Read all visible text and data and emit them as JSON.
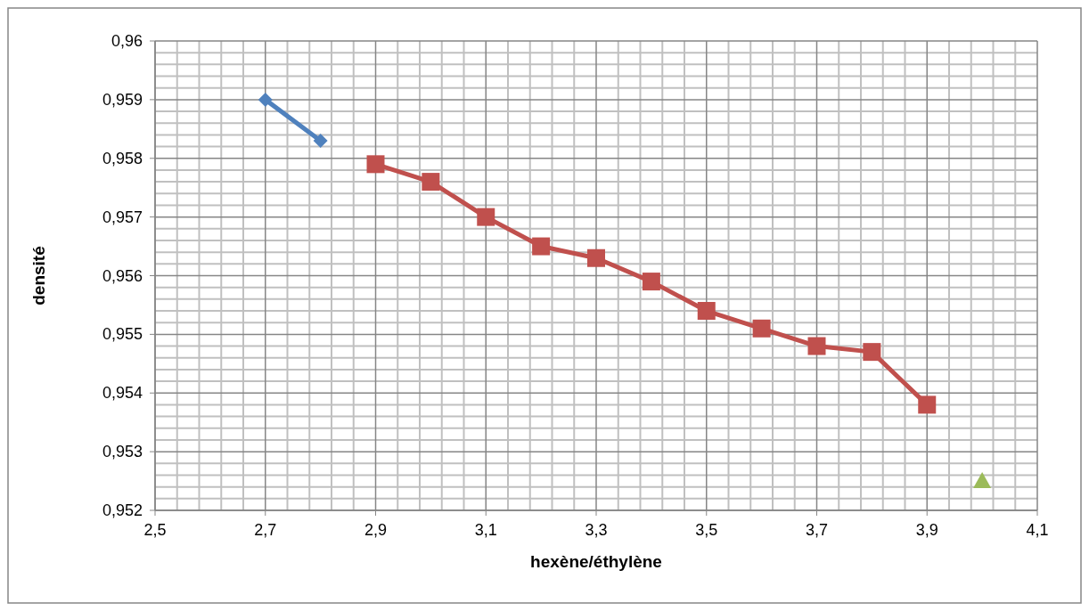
{
  "chart_data": {
    "type": "line",
    "xlabel": "hexène/éthylène",
    "ylabel": "densité",
    "xlim": [
      2.5,
      4.1
    ],
    "xticks": [
      {
        "value": 2.5,
        "label": "2,5"
      },
      {
        "value": 2.7,
        "label": "2,7"
      },
      {
        "value": 2.9,
        "label": "2,9"
      },
      {
        "value": 3.1,
        "label": "3,1"
      },
      {
        "value": 3.3,
        "label": "3,3"
      },
      {
        "value": 3.5,
        "label": "3,5"
      },
      {
        "value": 3.7,
        "label": "3,7"
      },
      {
        "value": 3.9,
        "label": "3,9"
      },
      {
        "value": 4.1,
        "label": "4,1"
      }
    ],
    "ylim": [
      0.952,
      0.96
    ],
    "yticks": [
      {
        "value": 0.952,
        "label": "0,952"
      },
      {
        "value": 0.953,
        "label": "0,953"
      },
      {
        "value": 0.954,
        "label": "0,954"
      },
      {
        "value": 0.955,
        "label": "0,955"
      },
      {
        "value": 0.956,
        "label": "0,956"
      },
      {
        "value": 0.957,
        "label": "0,957"
      },
      {
        "value": 0.958,
        "label": "0,958"
      },
      {
        "value": 0.959,
        "label": "0,959"
      },
      {
        "value": 0.96,
        "label": "0,96"
      }
    ],
    "grid": true,
    "line_style": "solid",
    "series": [
      {
        "color": "#4f81bd",
        "marker": "diamond",
        "x": [
          2.7,
          2.8
        ],
        "values": [
          0.959,
          0.9583
        ]
      },
      {
        "color": "#c0504d",
        "marker": "square",
        "x": [
          2.9,
          3.0,
          3.1,
          3.2,
          3.3,
          3.4,
          3.5,
          3.6,
          3.7,
          3.8,
          3.9
        ],
        "values": [
          0.9579,
          0.9576,
          0.957,
          0.9565,
          0.9563,
          0.9559,
          0.9554,
          0.9551,
          0.9548,
          0.9547,
          0.9538
        ]
      },
      {
        "type": "scatter",
        "color": "#9bbb59",
        "marker": "triangle",
        "x": [
          4.0
        ],
        "values": [
          0.9525
        ]
      }
    ]
  }
}
